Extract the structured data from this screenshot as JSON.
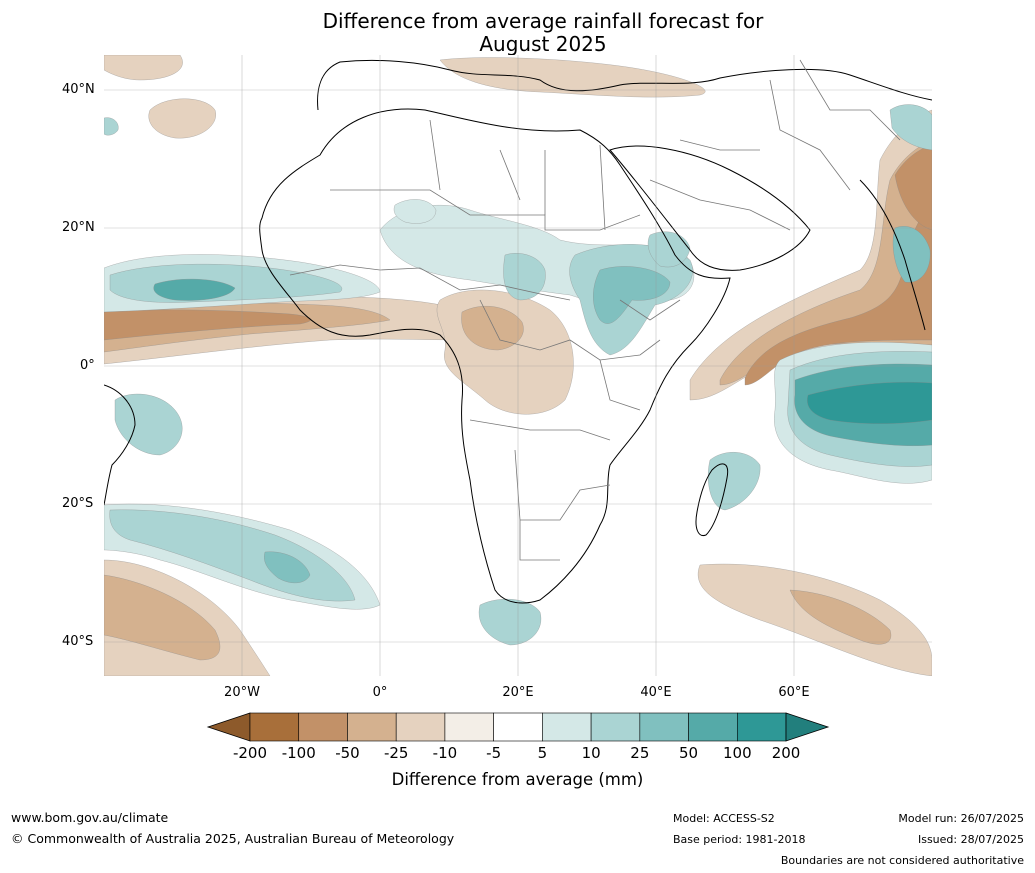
{
  "title": {
    "line1": "Difference from average rainfall forecast for",
    "line2": "August 2025"
  },
  "axes": {
    "lat_labels": [
      "40°N",
      "20°N",
      "0°",
      "20°S",
      "40°S"
    ],
    "lon_labels": [
      "20°W",
      "0°",
      "20°E",
      "40°E",
      "60°E"
    ]
  },
  "colorbar": {
    "title": "Difference from average (mm)",
    "tick_labels": [
      "-200",
      "-100",
      "-50",
      "-25",
      "-10",
      "-5",
      "5",
      "10",
      "25",
      "50",
      "100",
      "200"
    ],
    "colors": [
      "#a86f3a",
      "#c29168",
      "#d4b18f",
      "#e5d2bf",
      "#f3eee7",
      "#ffffff",
      "#d4e8e7",
      "#aad4d3",
      "#80c0bf",
      "#55aaa8",
      "#2e9896"
    ],
    "extend_low_color": "#8d5a2b",
    "extend_high_color": "#227f7d"
  },
  "footer": {
    "website": "www.bom.gov.au/climate",
    "copyright": "© Commonwealth of Australia 2025, Australian Bureau of Meteorology",
    "model": "Model: ACCESS-S2",
    "base_period": "Base period: 1981-2018",
    "model_run": "Model run: 26/07/2025",
    "issued": "Issued: 28/07/2025",
    "disclaimer": "Boundaries are not considered authoritative"
  },
  "map_colors": {
    "dry_strong": "#a86f3a",
    "dry_mid": "#c29168",
    "dry_light": "#d4b18f",
    "dry_faint": "#e5d2bf",
    "dry_trace": "#f3eee7",
    "wet_trace": "#d4e8e7",
    "wet_light": "#aad4d3",
    "wet_mid": "#80c0bf",
    "wet_strong": "#55aaa8",
    "wet_max": "#2e9896"
  }
}
